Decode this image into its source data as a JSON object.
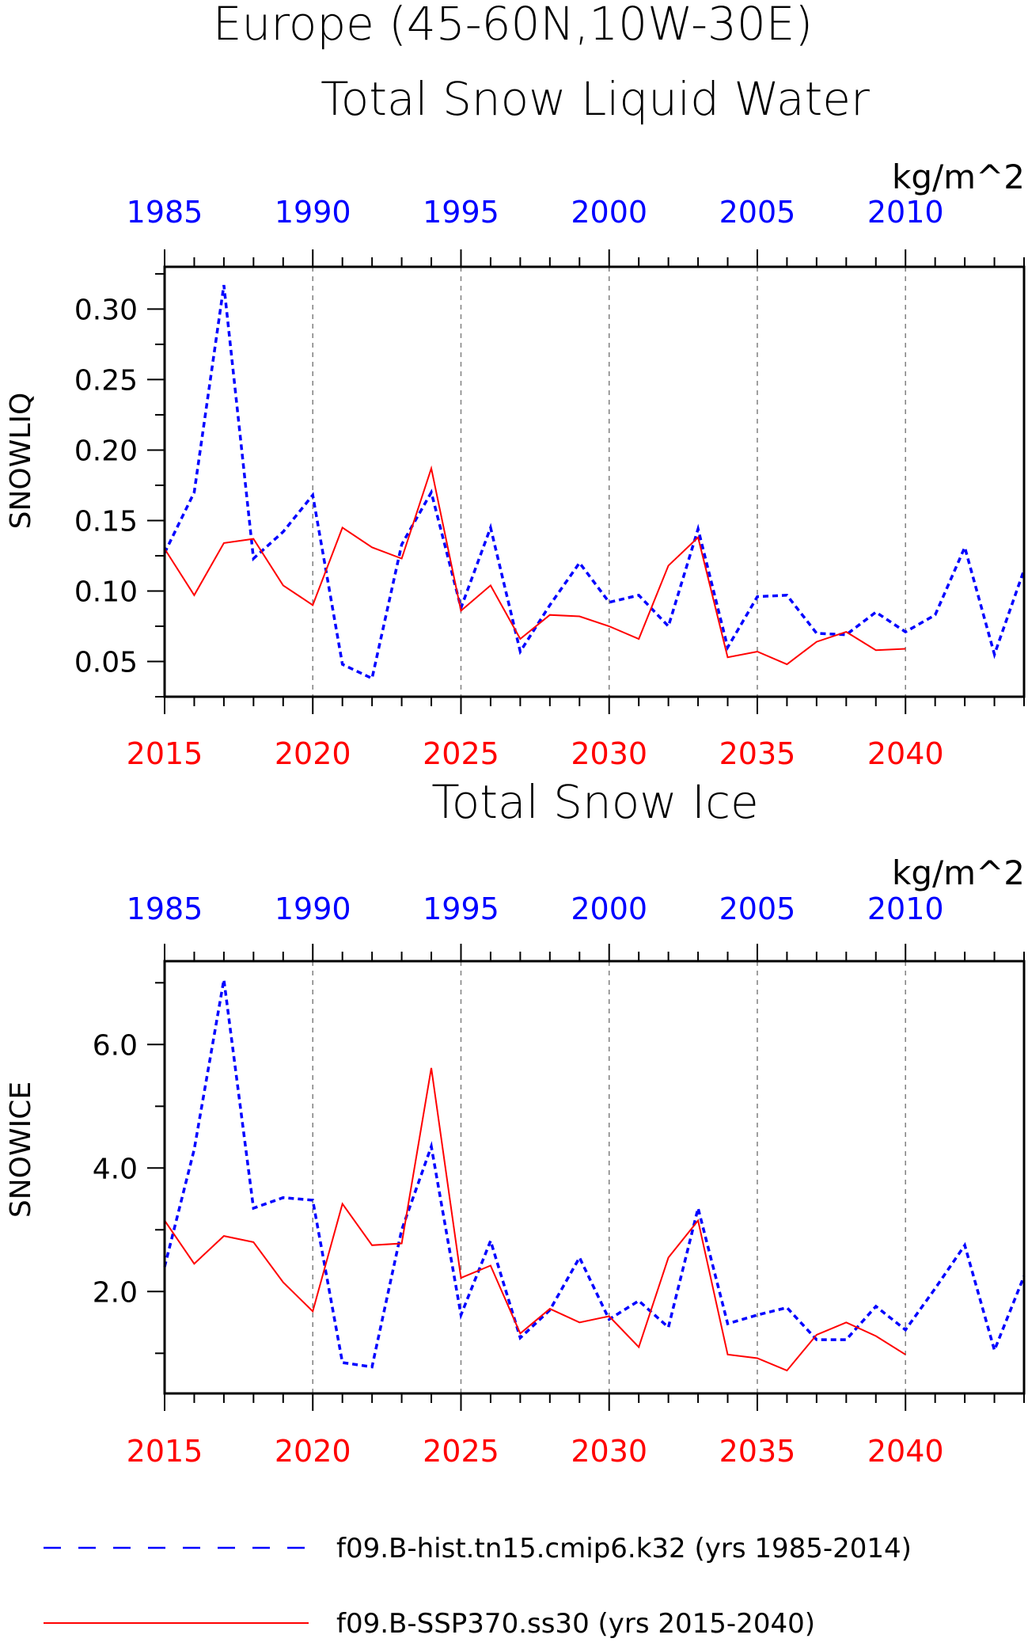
{
  "page": {
    "title_line1": "Europe (45-60N,10W-30E)",
    "legend": [
      {
        "label": "f09.B-hist.tn15.cmip6.k32 (yrs 1985-2014)",
        "color": "#0000ff",
        "style": "dashed"
      },
      {
        "label": "f09.B-SSP370.ss30 (yrs 2015-2040)",
        "color": "#ff0000",
        "style": "solid"
      }
    ]
  },
  "colors": {
    "hist": "#0000ff",
    "ssp": "#ff0000",
    "axis": "#000000",
    "grid": "#808080"
  },
  "chart_data": [
    {
      "type": "line",
      "title": "Total Snow Liquid Water",
      "units": "kg/m^2",
      "ylabel": "SNOWLIQ",
      "ylim": [
        0.025,
        0.33
      ],
      "yticks": [
        0.05,
        0.1,
        0.15,
        0.2,
        0.25,
        0.3
      ],
      "ytick_labels": [
        "0.05",
        "0.10",
        "0.15",
        "0.20",
        "0.25",
        "0.30"
      ],
      "bottom_axis": {
        "range": [
          2015,
          2044
        ],
        "ticks": [
          2015,
          2020,
          2025,
          2030,
          2035,
          2040
        ],
        "labels": [
          "2015",
          "2020",
          "2025",
          "2030",
          "2035",
          "2040"
        ]
      },
      "top_axis": {
        "range": [
          1985,
          2014
        ],
        "ticks": [
          1985,
          1990,
          1995,
          2000,
          2005,
          2010
        ],
        "labels": [
          "1985",
          "1990",
          "1995",
          "2000",
          "2005",
          "2010"
        ]
      },
      "grid_x": [
        2020,
        2025,
        2030,
        2035,
        2040
      ],
      "series": [
        {
          "name": "f09.B-hist.tn15.cmip6.k32 (yrs 1985-2014)",
          "axis": "top",
          "x": [
            1985,
            1986,
            1987,
            1988,
            1989,
            1990,
            1991,
            1992,
            1993,
            1994,
            1995,
            1996,
            1997,
            1998,
            1999,
            2000,
            2001,
            2002,
            2003,
            2004,
            2005,
            2006,
            2007,
            2008,
            2009,
            2010,
            2011,
            2012,
            2013,
            2014
          ],
          "values": [
            0.127,
            0.17,
            0.317,
            0.123,
            0.142,
            0.168,
            0.048,
            0.038,
            0.133,
            0.17,
            0.088,
            0.145,
            0.057,
            0.09,
            0.12,
            0.092,
            0.097,
            0.075,
            0.144,
            0.06,
            0.096,
            0.097,
            0.07,
            0.069,
            0.085,
            0.071,
            0.083,
            0.131,
            0.055,
            0.115
          ]
        },
        {
          "name": "f09.B-SSP370.ss30 (yrs 2015-2040)",
          "axis": "bottom",
          "x": [
            2015,
            2016,
            2017,
            2018,
            2019,
            2020,
            2021,
            2022,
            2023,
            2024,
            2025,
            2026,
            2027,
            2028,
            2029,
            2030,
            2031,
            2032,
            2033,
            2034,
            2035,
            2036,
            2037,
            2038,
            2039,
            2040
          ],
          "values": [
            0.13,
            0.097,
            0.134,
            0.137,
            0.104,
            0.09,
            0.145,
            0.131,
            0.123,
            0.187,
            0.086,
            0.104,
            0.066,
            0.083,
            0.082,
            0.075,
            0.066,
            0.118,
            0.138,
            0.053,
            0.057,
            0.048,
            0.064,
            0.071,
            0.058,
            0.059
          ]
        }
      ]
    },
    {
      "type": "line",
      "title": "Total Snow Ice",
      "units": "kg/m^2",
      "ylabel": "SNOWICE",
      "ylim": [
        0.35,
        7.35
      ],
      "yticks": [
        2.0,
        4.0,
        6.0
      ],
      "ytick_labels": [
        "2.0",
        "4.0",
        "6.0"
      ],
      "bottom_axis": {
        "range": [
          2015,
          2044
        ],
        "ticks": [
          2015,
          2020,
          2025,
          2030,
          2035,
          2040
        ],
        "labels": [
          "2015",
          "2020",
          "2025",
          "2030",
          "2035",
          "2040"
        ]
      },
      "top_axis": {
        "range": [
          1985,
          2014
        ],
        "ticks": [
          1985,
          1990,
          1995,
          2000,
          2005,
          2010
        ],
        "labels": [
          "1985",
          "1990",
          "1995",
          "2000",
          "2005",
          "2010"
        ]
      },
      "grid_x": [
        2020,
        2025,
        2030,
        2035,
        2040
      ],
      "series": [
        {
          "name": "f09.B-hist.tn15.cmip6.k32 (yrs 1985-2014)",
          "axis": "top",
          "x": [
            1985,
            1986,
            1987,
            1988,
            1989,
            1990,
            1991,
            1992,
            1993,
            1994,
            1995,
            1996,
            1997,
            1998,
            1999,
            2000,
            2001,
            2002,
            2003,
            2004,
            2005,
            2006,
            2007,
            2008,
            2009,
            2010,
            2011,
            2012,
            2013,
            2014
          ],
          "values": [
            2.4,
            4.3,
            7.05,
            3.35,
            3.52,
            3.48,
            0.85,
            0.78,
            3.0,
            4.35,
            1.62,
            2.82,
            1.25,
            1.7,
            2.55,
            1.55,
            1.85,
            1.42,
            3.35,
            1.48,
            1.62,
            1.74,
            1.22,
            1.22,
            1.76,
            1.38,
            2.05,
            2.75,
            1.05,
            2.25
          ]
        },
        {
          "name": "f09.B-SSP370.ss30 (yrs 2015-2040)",
          "axis": "bottom",
          "x": [
            2015,
            2016,
            2017,
            2018,
            2019,
            2020,
            2021,
            2022,
            2023,
            2024,
            2025,
            2026,
            2027,
            2028,
            2029,
            2030,
            2031,
            2032,
            2033,
            2034,
            2035,
            2036,
            2037,
            2038,
            2039,
            2040
          ],
          "values": [
            3.15,
            2.45,
            2.9,
            2.8,
            2.15,
            1.68,
            3.42,
            2.75,
            2.78,
            5.62,
            2.22,
            2.42,
            1.32,
            1.72,
            1.5,
            1.6,
            1.1,
            2.55,
            3.15,
            0.98,
            0.92,
            0.72,
            1.3,
            1.5,
            1.28,
            0.98
          ]
        }
      ]
    }
  ]
}
